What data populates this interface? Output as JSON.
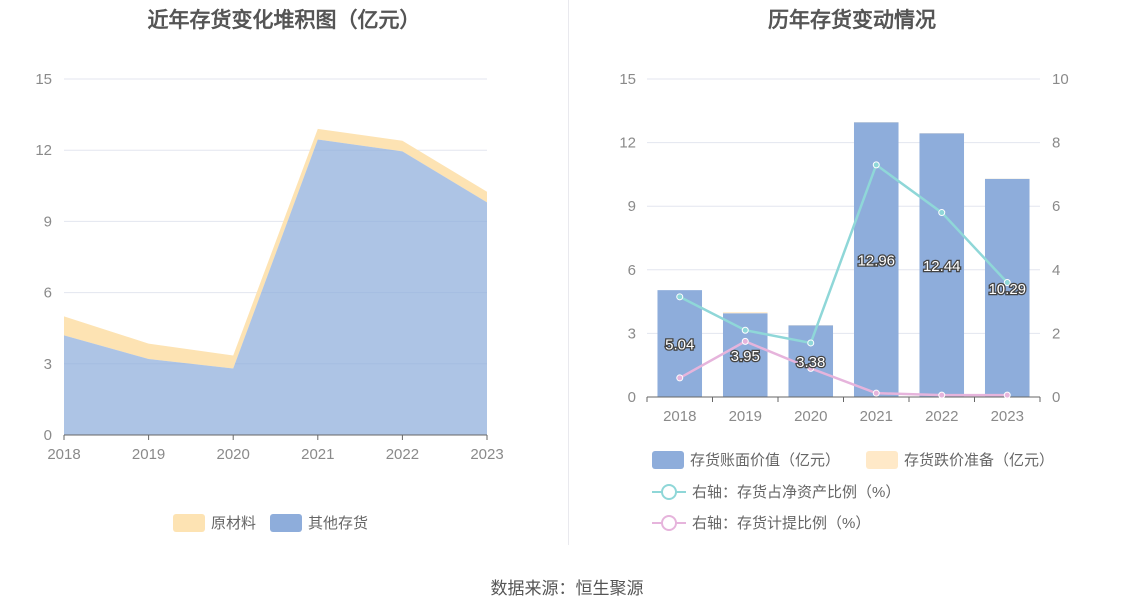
{
  "charts": {
    "left": {
      "title": "近年存货变化堆积图（亿元）",
      "legend": [
        "原材料",
        "其他存货"
      ]
    },
    "right": {
      "title": "历年存货变动情况",
      "legend": [
        "存货账面价值（亿元）",
        "存货跌价准备（亿元）",
        "右轴：存货占净资产比例（%）",
        "右轴：存货计提比例（%）"
      ]
    }
  },
  "source": "数据来源：恒生聚源",
  "colors": {
    "raw_material": "#fde3b3",
    "other_inventory": "#8eaddb",
    "bar": "#8eaddb",
    "impairment": "#ffe9c8",
    "ratio_line": "#8fd7d8",
    "provision_line": "#e6b4dc",
    "grid": "#e3e6ef"
  },
  "chart_data": [
    {
      "type": "area",
      "stacked": true,
      "title": "近年存货变化堆积图（亿元）",
      "x": [
        "2018",
        "2019",
        "2020",
        "2021",
        "2022",
        "2023"
      ],
      "ylim": [
        0,
        15
      ],
      "yticks": [
        0,
        3,
        6,
        9,
        12,
        15
      ],
      "series": [
        {
          "name": "其他存货",
          "values": [
            4.2,
            3.2,
            2.8,
            12.45,
            11.95,
            9.8
          ]
        },
        {
          "name": "原材料",
          "values": [
            0.8,
            0.65,
            0.55,
            0.45,
            0.45,
            0.45
          ]
        }
      ],
      "legend_position": "bottom",
      "grid": true
    },
    {
      "type": "bar",
      "title": "历年存货变动情况",
      "categories": [
        "2018",
        "2019",
        "2020",
        "2021",
        "2022",
        "2023"
      ],
      "ylim": [
        0,
        15
      ],
      "yticks": [
        0,
        3,
        6,
        9,
        12,
        15
      ],
      "y2lim": [
        0,
        10
      ],
      "y2ticks": [
        0,
        2,
        4,
        6,
        8,
        10
      ],
      "series": [
        {
          "name": "存货账面价值（亿元）",
          "type": "bar",
          "axis": "left",
          "values": [
            5.04,
            3.95,
            3.38,
            12.96,
            12.44,
            10.29
          ],
          "labels": [
            "5.04",
            "3.95",
            "3.38",
            "12.96",
            "12.44",
            "10.29"
          ]
        },
        {
          "name": "存货跌价准备（亿元）",
          "type": "bar-stack",
          "axis": "left",
          "values": [
            0.0,
            0.05,
            0.01,
            0.01,
            0.01,
            0.01
          ]
        },
        {
          "name": "右轴：存货占净资产比例（%）",
          "type": "line",
          "axis": "right",
          "values": [
            3.15,
            2.1,
            1.7,
            7.3,
            5.8,
            3.6
          ]
        },
        {
          "name": "右轴：存货计提比例（%）",
          "type": "line",
          "axis": "right",
          "values": [
            0.6,
            1.75,
            0.9,
            0.12,
            0.06,
            0.06
          ]
        }
      ],
      "legend_position": "bottom",
      "grid": true
    }
  ]
}
